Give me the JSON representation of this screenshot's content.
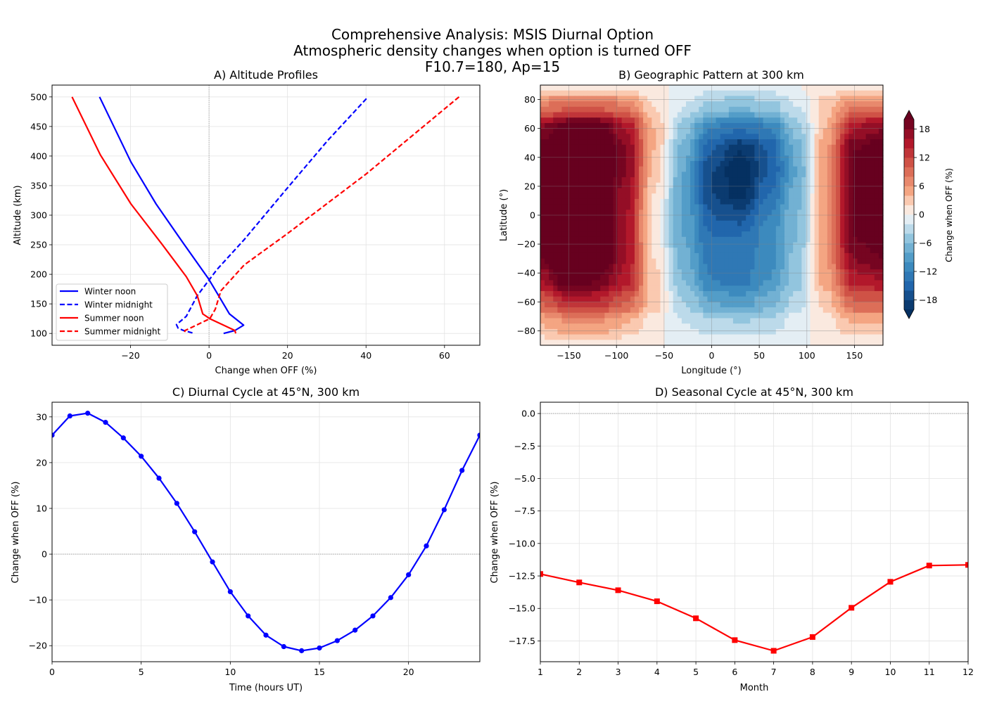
{
  "figure": {
    "title_lines": [
      "Comprehensive Analysis: MSIS Diurnal Option",
      "Atmospheric density changes when option is turned OFF",
      "F10.7=180, Ap=15"
    ]
  },
  "chart_data": [
    {
      "id": "A",
      "type": "line",
      "title": "A) Altitude Profiles",
      "xlabel": "Change when OFF (%)",
      "ylabel": "Altitude (km)",
      "xlim": [
        -40,
        69
      ],
      "ylim": [
        80,
        520
      ],
      "xticks": [
        -20,
        0,
        20,
        40,
        60
      ],
      "yticks": [
        100,
        150,
        200,
        250,
        300,
        350,
        400,
        450,
        500
      ],
      "grid": true,
      "reference_line": {
        "x": 0,
        "style": "dotted"
      },
      "legend_position": "lower-left",
      "series": [
        {
          "name": "Winter noon",
          "color": "#0000ff",
          "style": "solid",
          "x": [
            -27.9,
            -19.9,
            -13.5,
            -6.5,
            -0.1,
            2.7,
            5.2,
            8.8,
            6.6,
            3.7
          ],
          "y": [
            500,
            390,
            319,
            252,
            192,
            161,
            133,
            114,
            105,
            100
          ]
        },
        {
          "name": "Winter midnight",
          "color": "#0000ff",
          "style": "dashed",
          "x": [
            40.1,
            30.2,
            19.6,
            9.0,
            2.0,
            -3.0,
            -5.8,
            -8.3,
            -7.9,
            -6.5,
            -3.7
          ],
          "y": [
            497,
            426,
            343,
            259,
            208,
            164,
            129,
            115,
            109,
            105,
            100
          ]
        },
        {
          "name": "Summer noon",
          "color": "#ff0000",
          "style": "solid",
          "x": [
            -34.9,
            -27.7,
            -19.9,
            -12.1,
            -5.8,
            -3.0,
            -1.6,
            0.2,
            3.4,
            6.6,
            6.8
          ],
          "y": [
            500,
            402,
            319,
            252,
            196,
            164,
            133,
            125,
            115,
            105,
            100
          ]
        },
        {
          "name": "Summer midnight",
          "color": "#ff0000",
          "style": "dashed",
          "x": [
            63.7,
            40.1,
            19.6,
            9.0,
            3.0,
            1.6,
            0.2,
            -2.3,
            -6.1,
            -6.3
          ],
          "y": [
            500,
            370,
            267,
            216,
            172,
            141,
            125,
            117,
            105,
            101
          ]
        }
      ]
    },
    {
      "id": "B",
      "type": "heatmap",
      "title": "B) Geographic Pattern at 300 km",
      "xlabel": "Longitude (°)",
      "ylabel": "Latitude (°)",
      "xlim": [
        -180,
        180
      ],
      "ylim": [
        -90,
        90
      ],
      "xticks": [
        -150,
        -100,
        -50,
        0,
        50,
        100,
        150
      ],
      "yticks": [
        -80,
        -60,
        -40,
        -20,
        0,
        20,
        40,
        60,
        80
      ],
      "grid": true,
      "colormap": "RdBu_r",
      "levels": {
        "min": -20,
        "max": 20,
        "step": 2
      },
      "colorbar": {
        "label": "Change when OFF (%)",
        "ticks": [
          -18,
          -12,
          -6,
          0,
          6,
          12,
          18
        ],
        "extend": "both",
        "position": "right"
      },
      "lon": [
        -180,
        -150,
        -120,
        -90,
        -60,
        -30,
        0,
        30,
        60,
        90,
        120,
        150,
        180
      ],
      "lat": [
        90,
        75,
        60,
        45,
        30,
        15,
        0,
        -15,
        -30,
        -45,
        -60,
        -75,
        -90
      ],
      "values": [
        [
          1,
          1,
          1,
          1,
          0,
          0,
          -1,
          -1,
          -1,
          0,
          1,
          1,
          1
        ],
        [
          8,
          10,
          10,
          8,
          2,
          -2,
          -5,
          -6,
          -5,
          -2,
          3,
          8,
          8
        ],
        [
          18,
          22,
          22,
          16,
          4,
          -5,
          -12,
          -14,
          -12,
          -5,
          4,
          16,
          18
        ],
        [
          22,
          25,
          25,
          18,
          4,
          -7,
          -16,
          -20,
          -16,
          -7,
          6,
          20,
          22
        ],
        [
          22,
          25,
          25,
          18,
          3,
          -8,
          -18,
          -22,
          -16,
          -8,
          6,
          20,
          22
        ],
        [
          22,
          25,
          24,
          17,
          2,
          -8,
          -18,
          -21,
          -14,
          -7,
          6,
          20,
          22
        ],
        [
          22,
          25,
          24,
          16,
          1,
          -8,
          -16,
          -17,
          -12,
          -6,
          6,
          20,
          22
        ],
        [
          22,
          25,
          24,
          16,
          1,
          -8,
          -14,
          -14,
          -11,
          -6,
          6,
          20,
          22
        ],
        [
          20,
          24,
          24,
          16,
          2,
          -7,
          -13,
          -13,
          -11,
          -5,
          6,
          18,
          20
        ],
        [
          16,
          22,
          20,
          15,
          3,
          -6,
          -12,
          -13,
          -10,
          -5,
          5,
          15,
          16
        ],
        [
          10,
          14,
          14,
          10,
          3,
          -4,
          -8,
          -9,
          -7,
          -3,
          3,
          10,
          10
        ],
        [
          4,
          6,
          6,
          4,
          1,
          -2,
          -3,
          -4,
          -3,
          -1,
          1,
          4,
          4
        ],
        [
          1,
          1,
          1,
          1,
          0,
          0,
          -1,
          -1,
          -1,
          0,
          0,
          1,
          1
        ]
      ]
    },
    {
      "id": "C",
      "type": "line",
      "title": "C) Diurnal Cycle at 45°N, 300 km",
      "xlabel": "Time (hours UT)",
      "ylabel": "Change when OFF (%)",
      "xlim": [
        0,
        24
      ],
      "ylim": [
        -23.5,
        33.2
      ],
      "xticks": [
        0,
        5,
        10,
        15,
        20
      ],
      "yticks": [
        -20,
        -10,
        0,
        10,
        20,
        30
      ],
      "grid": true,
      "reference_line": {
        "y": 0,
        "style": "dotted"
      },
      "series": [
        {
          "color": "#0000ff",
          "marker": "circle",
          "x": [
            0,
            1,
            2,
            3,
            4,
            5,
            6,
            7,
            8,
            9,
            10,
            11,
            12,
            13,
            14,
            15,
            16,
            17,
            18,
            19,
            20,
            21,
            22,
            23,
            24
          ],
          "y": [
            26.0,
            30.2,
            30.8,
            28.8,
            25.4,
            21.4,
            16.6,
            11.1,
            4.9,
            -1.7,
            -8.2,
            -13.5,
            -17.7,
            -20.2,
            -21.1,
            -20.5,
            -18.9,
            -16.6,
            -13.5,
            -9.5,
            -4.5,
            1.8,
            9.7,
            18.3,
            26.0
          ]
        }
      ]
    },
    {
      "id": "D",
      "type": "line",
      "title": "D) Seasonal Cycle at 45°N, 300 km",
      "xlabel": "Month",
      "ylabel": "Change when OFF (%)",
      "xlim": [
        1,
        12
      ],
      "ylim": [
        -19.1,
        0.87
      ],
      "xticks": [
        1,
        2,
        3,
        4,
        5,
        6,
        7,
        8,
        9,
        10,
        11,
        12
      ],
      "yticks": [
        0.0,
        -2.5,
        -5.0,
        -7.5,
        -10.0,
        -12.5,
        -15.0,
        -17.5
      ],
      "grid": true,
      "reference_line": {
        "y": 0,
        "style": "dotted"
      },
      "series": [
        {
          "color": "#ff0000",
          "marker": "square",
          "x": [
            1,
            2,
            3,
            4,
            5,
            6,
            7,
            8,
            9,
            10,
            11,
            12
          ],
          "y": [
            -12.35,
            -13.0,
            -13.6,
            -14.45,
            -15.76,
            -17.44,
            -18.26,
            -17.2,
            -14.95,
            -12.95,
            -11.7,
            -11.65
          ]
        }
      ]
    }
  ]
}
